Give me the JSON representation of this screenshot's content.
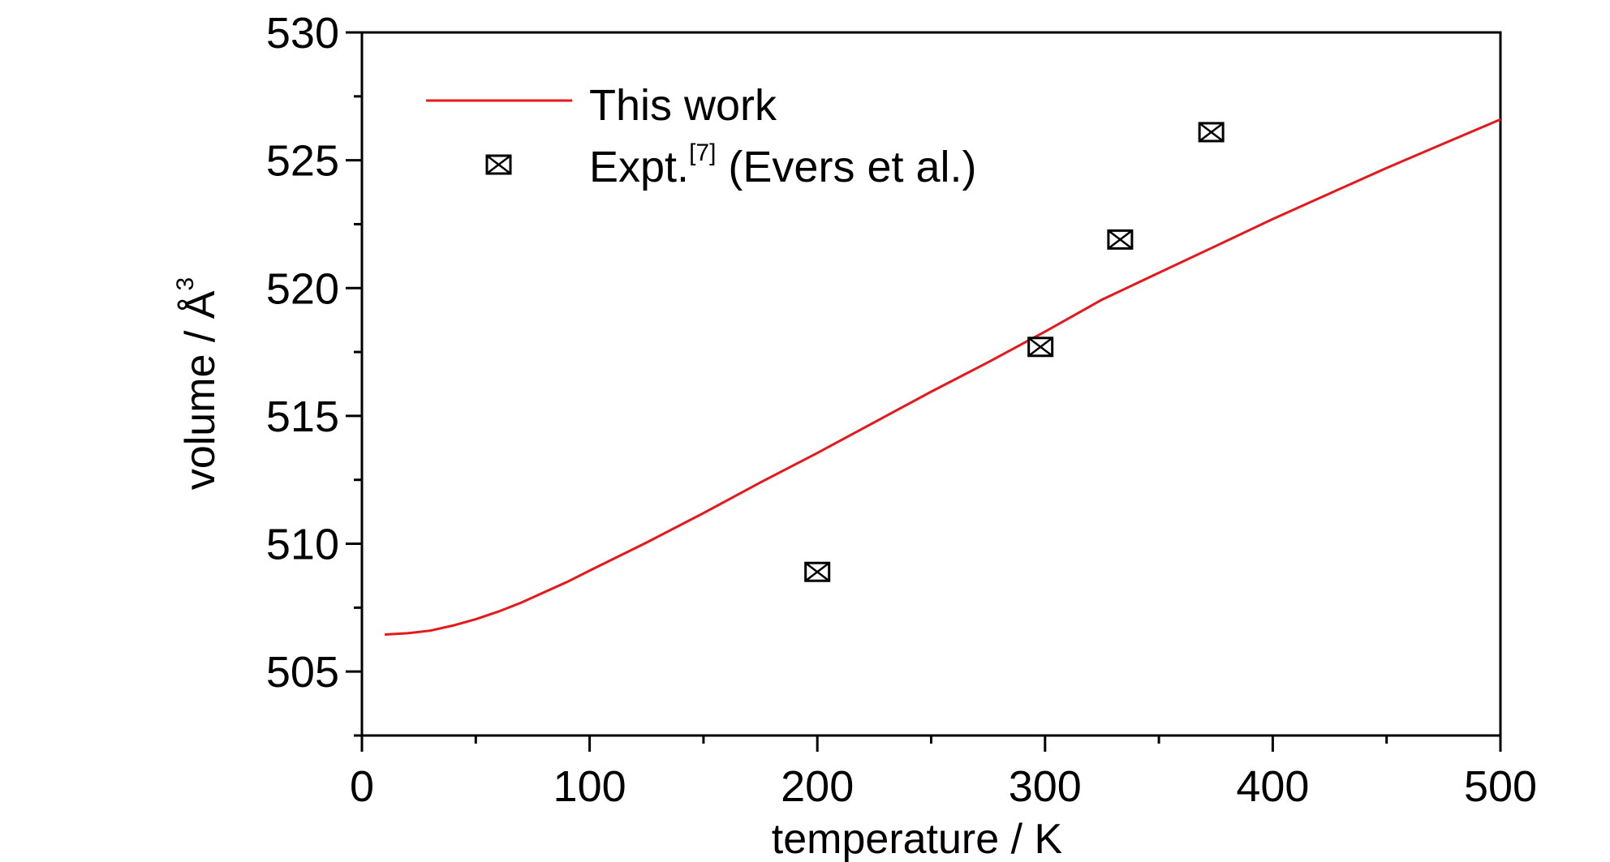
{
  "chart_data": {
    "type": "line",
    "xlabel": "temperature / K",
    "ylabel": "volume / Å",
    "ylabel_superscript": "3",
    "xlim": [
      0,
      500
    ],
    "ylim": [
      502.5,
      530
    ],
    "x_ticks": [
      0,
      100,
      200,
      300,
      400,
      500
    ],
    "x_tick_labels": [
      "0",
      "100",
      "200",
      "300",
      "400",
      "500"
    ],
    "y_ticks": [
      505,
      510,
      515,
      520,
      525,
      530
    ],
    "y_tick_labels": [
      "505",
      "510",
      "515",
      "520",
      "525",
      "530"
    ],
    "grid": false,
    "legend_position": "top-left",
    "series": [
      {
        "name": "This work",
        "style": "line",
        "color": "#e8171b",
        "x": [
          10,
          20,
          30,
          40,
          50,
          60,
          70,
          80,
          90,
          100,
          125,
          150,
          175,
          200,
          225,
          250,
          275,
          300,
          325,
          350,
          375,
          400,
          425,
          450,
          475,
          500
        ],
        "y": [
          506.45,
          506.5,
          506.6,
          506.8,
          507.05,
          507.35,
          507.7,
          508.1,
          508.5,
          508.95,
          510.05,
          511.2,
          512.4,
          513.55,
          514.75,
          515.95,
          517.1,
          518.3,
          519.55,
          520.6,
          521.65,
          522.7,
          523.7,
          524.7,
          525.65,
          526.6
        ]
      },
      {
        "name_prefix": "Expt.",
        "name_superscript": "[7]",
        "name_suffix": " (Evers et al.)",
        "style": "marker",
        "marker": "square-x",
        "color": "#000000",
        "x": [
          200,
          298,
          333,
          373
        ],
        "y": [
          508.9,
          517.7,
          521.9,
          526.1
        ]
      }
    ]
  }
}
